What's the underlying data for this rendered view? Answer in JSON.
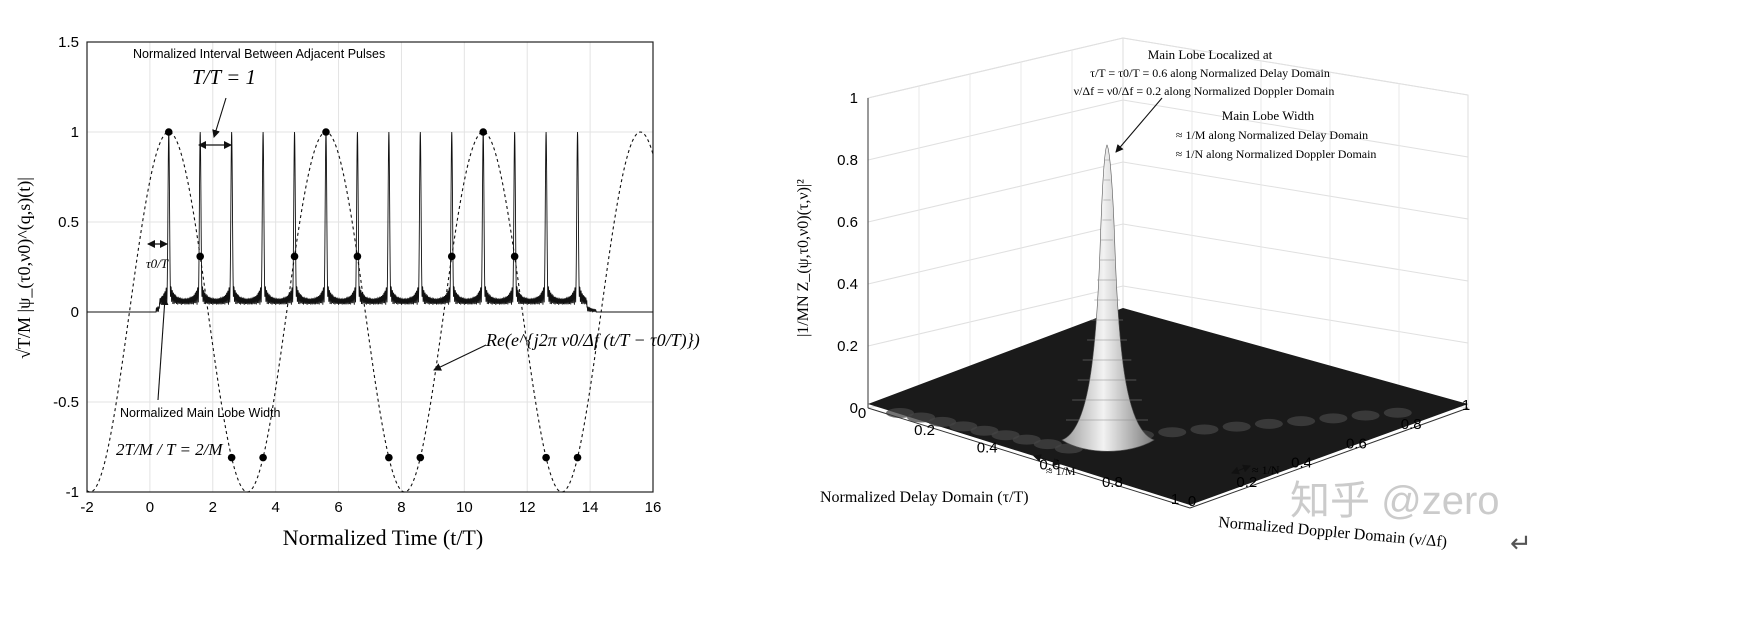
{
  "chart_data": [
    {
      "type": "line",
      "xlabel": "Normalized Time (t/T)",
      "ylabel": "√T/M |ψ_(τ0,ν0)^(q,s)(t)|",
      "xlim": [
        -2,
        16
      ],
      "ylim": [
        -1,
        1.5
      ],
      "xticks": [
        "-2",
        "0",
        "2",
        "4",
        "6",
        "8",
        "10",
        "12",
        "14",
        "16"
      ],
      "yticks": [
        "-1",
        "-0.5",
        "0",
        "0.5",
        "1",
        "1.5"
      ],
      "grid": true,
      "annotations": {
        "interval_title": "Normalized Interval Between Adjacent Pulses",
        "interval_formula": "T/T = 1",
        "tau_label": "τ0/T",
        "cosine_label": "Re(e^{j2π ν0/Δf (t/T − τ0/T)})",
        "lobe_title": "Normalized Main Lobe Width",
        "lobe_formula": "2T/M / T = 2/M"
      },
      "series": [
        {
          "style": "solid",
          "peaks_x": [
            0.6,
            1.6,
            2.6,
            3.6,
            4.6,
            5.6,
            6.6,
            7.6,
            8.6,
            9.6,
            10.6,
            11.6,
            12.6,
            13.6
          ],
          "peak_value": 1
        },
        {
          "style": "dashed",
          "function": "cos(2*pi*0.2*(x-0.6))"
        }
      ],
      "markers_x": [
        0.6,
        1.6,
        2.6,
        3.6,
        4.6,
        5.6,
        6.6,
        7.6,
        8.6,
        9.6,
        10.6,
        11.6,
        12.6,
        13.6
      ],
      "markers_y": [
        1,
        0.309,
        -0.809,
        -0.809,
        0.309,
        1,
        0.309,
        -0.809,
        -0.809,
        0.309,
        1,
        0.309,
        -0.809,
        -0.809
      ]
    },
    {
      "type": "surface",
      "xlabel": "Normalized Delay Domain (τ/T)",
      "ylabel": "Normalized Doppler Domain (ν/Δf)",
      "zlabel": "|1/MN Z_(ψ,τ0,ν0)(τ,ν)|²",
      "zlim": [
        0,
        1
      ],
      "zticks": [
        "0",
        "0.2",
        "0.4",
        "0.6",
        "0.8",
        "1"
      ],
      "delay_ticks": [
        "0",
        "0.2",
        "0.4",
        "0.6",
        "0.8",
        "1"
      ],
      "doppler_ticks": [
        "0",
        "0.2",
        "0.4",
        "0.6",
        "0.8",
        "1"
      ],
      "peak": {
        "delay": 0.6,
        "doppler": 0.2,
        "value": 0.85
      },
      "annotations": {
        "loc_title": "Main Lobe Localized at",
        "loc_line1": "τ/T = τ0/T = 0.6 along Normalized Delay Domain",
        "loc_line2": "ν/Δf = ν0/Δf = 0.2 along Normalized Doppler Domain",
        "width_title": "Main Lobe Width",
        "width_line1": "≈ 1/M along Normalized Delay Domain",
        "width_line2": "≈ 1/N along Normalized Doppler Domain",
        "delay_width": "≈ 1/M",
        "doppler_width": "≈ 1/N"
      }
    }
  ],
  "watermark": "知乎 @zero",
  "return_glyph": "↵"
}
